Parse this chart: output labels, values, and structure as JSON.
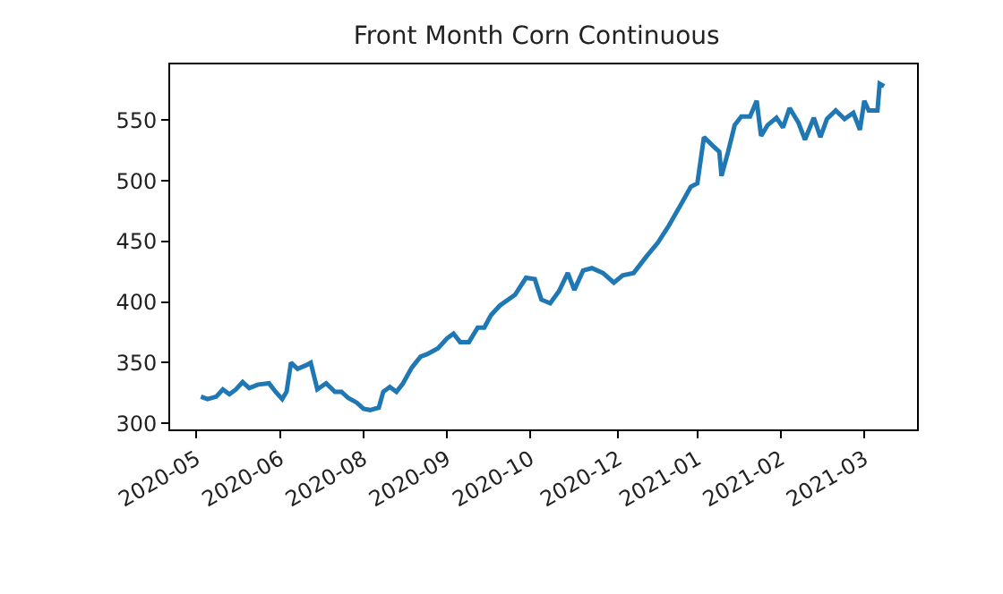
{
  "chart_data": {
    "type": "line",
    "title": "Front Month Corn Continuous",
    "x": [
      "2020-05-25",
      "2020-05-28",
      "2020-06-01",
      "2020-06-04",
      "2020-06-07",
      "2020-06-10",
      "2020-06-13",
      "2020-06-16",
      "2020-06-20",
      "2020-06-25",
      "2020-06-28",
      "2020-07-01",
      "2020-07-03",
      "2020-07-05",
      "2020-07-08",
      "2020-07-12",
      "2020-07-14",
      "2020-07-17",
      "2020-07-21",
      "2020-07-25",
      "2020-07-28",
      "2020-07-31",
      "2020-08-04",
      "2020-08-07",
      "2020-08-10",
      "2020-08-14",
      "2020-08-16",
      "2020-08-19",
      "2020-08-22",
      "2020-08-25",
      "2020-08-29",
      "2020-09-02",
      "2020-09-05",
      "2020-09-10",
      "2020-09-14",
      "2020-09-17",
      "2020-09-20",
      "2020-09-24",
      "2020-09-28",
      "2020-10-01",
      "2020-10-04",
      "2020-10-08",
      "2020-10-15",
      "2020-10-20",
      "2020-10-24",
      "2020-10-27",
      "2020-10-31",
      "2020-11-04",
      "2020-11-08",
      "2020-11-11",
      "2020-11-15",
      "2020-11-19",
      "2020-11-24",
      "2020-11-29",
      "2020-12-03",
      "2020-12-08",
      "2020-12-14",
      "2020-12-19",
      "2020-12-24",
      "2020-12-30",
      "2021-01-03",
      "2021-01-06",
      "2021-01-09",
      "2021-01-13",
      "2021-01-16",
      "2021-01-17",
      "2021-01-20",
      "2021-01-23",
      "2021-01-26",
      "2021-01-30",
      "2021-02-02",
      "2021-02-04",
      "2021-02-07",
      "2021-02-11",
      "2021-02-14",
      "2021-02-17",
      "2021-02-21",
      "2021-02-24",
      "2021-02-28",
      "2021-03-03",
      "2021-03-06",
      "2021-03-10",
      "2021-03-14",
      "2021-03-18",
      "2021-03-21",
      "2021-03-23",
      "2021-03-25",
      "2021-03-29",
      "2021-03-30",
      "2021-04-01"
    ],
    "series": [
      {
        "color": "#1f77b4",
        "values": [
          322,
          320,
          322,
          328,
          324,
          328,
          334,
          329,
          332,
          333,
          326,
          320,
          326,
          350,
          345,
          348,
          350,
          328,
          333,
          326,
          326,
          321,
          317,
          312,
          311,
          313,
          326,
          330,
          326,
          333,
          346,
          355,
          357,
          362,
          370,
          374,
          367,
          367,
          379,
          379,
          389,
          397,
          406,
          420,
          419,
          402,
          399,
          409,
          424,
          410,
          426,
          428,
          424,
          416,
          422,
          424,
          438,
          449,
          463,
          482,
          495,
          498,
          536,
          529,
          524,
          504,
          524,
          546,
          553,
          553,
          566,
          537,
          546,
          552,
          544,
          560,
          548,
          534,
          552,
          536,
          551,
          558,
          551,
          556,
          542,
          566,
          558,
          558,
          580,
          578
        ]
      }
    ],
    "xlim": [
      "2020-05-11",
      "2021-04-16"
    ],
    "xticks": [
      {
        "value": "2020-05-23",
        "label": "2020-05"
      },
      {
        "value": "2020-06-30",
        "label": "2020-06"
      },
      {
        "value": "2020-08-07",
        "label": "2020-08"
      },
      {
        "value": "2020-09-14",
        "label": "2020-09"
      },
      {
        "value": "2020-10-22",
        "label": "2020-10"
      },
      {
        "value": "2020-12-01",
        "label": "2020-12"
      },
      {
        "value": "2021-01-06",
        "label": "2021-01"
      },
      {
        "value": "2021-02-13",
        "label": "2021-02"
      },
      {
        "value": "2021-03-23",
        "label": "2021-03"
      }
    ],
    "ylim": [
      295,
      596
    ],
    "yticks": [
      300,
      350,
      400,
      450,
      500,
      550
    ],
    "marker": "none",
    "line_style": "solid"
  }
}
